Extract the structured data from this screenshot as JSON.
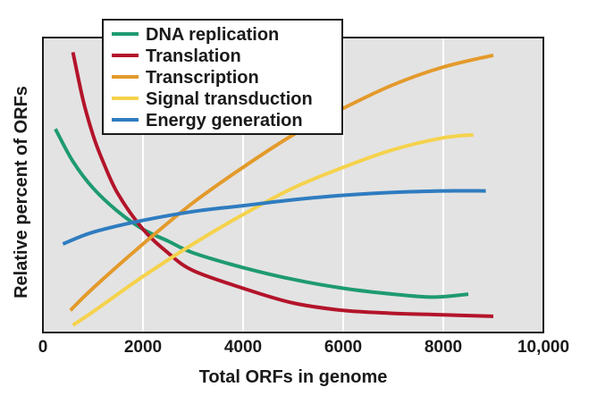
{
  "chart_data": {
    "type": "line",
    "xlabel": "Total ORFs in genome",
    "ylabel": "Relative percent of ORFs",
    "xlim": [
      0,
      10000
    ],
    "ylim": [
      0,
      100
    ],
    "x_ticks": [
      {
        "value": 0,
        "label": "0"
      },
      {
        "value": 2000,
        "label": "2000"
      },
      {
        "value": 4000,
        "label": "4000"
      },
      {
        "value": 6000,
        "label": "6000"
      },
      {
        "value": 8000,
        "label": "8000"
      },
      {
        "value": 10000,
        "label": "10,000"
      }
    ],
    "grid": "vertical",
    "legend_position": "top-left",
    "background_color": "#e3e3e3",
    "series": [
      {
        "name": "DNA replication",
        "color": "#1e9a72",
        "x": [
          250,
          600,
          1000,
          1500,
          2000,
          2500,
          3000,
          4000,
          5000,
          6000,
          7000,
          7800,
          8500
        ],
        "y": [
          69,
          58,
          49,
          41,
          35,
          31,
          27,
          22,
          18,
          15,
          13,
          12,
          13
        ]
      },
      {
        "name": "Translation",
        "color": "#b3142a",
        "x": [
          600,
          800,
          1000,
          1200,
          1500,
          2000,
          2500,
          3000,
          4000,
          5000,
          6000,
          7000,
          8000,
          9000
        ],
        "y": [
          95,
          79,
          67,
          58,
          47,
          35,
          27,
          21,
          15,
          10,
          7.5,
          6.5,
          6,
          5.5
        ]
      },
      {
        "name": "Transcription",
        "color": "#e39a2b",
        "x": [
          550,
          1000,
          2000,
          3000,
          4000,
          5000,
          6000,
          7000,
          8000,
          9000
        ],
        "y": [
          7.5,
          15,
          30,
          44,
          56,
          67,
          76,
          84,
          90,
          94
        ]
      },
      {
        "name": "Signal transduction",
        "color": "#f5d24b",
        "x": [
          600,
          1000,
          2000,
          3000,
          4000,
          5000,
          6000,
          7000,
          8000,
          8600
        ],
        "y": [
          2.5,
          7,
          19,
          30,
          40,
          49,
          56,
          62,
          66,
          67
        ]
      },
      {
        "name": "Energy generation",
        "color": "#2f7cc0",
        "x": [
          400,
          1000,
          2000,
          3000,
          4000,
          5000,
          6000,
          7000,
          8000,
          8850
        ],
        "y": [
          30,
          34,
          38,
          41,
          43,
          45,
          46.5,
          47.5,
          48,
          48
        ]
      }
    ]
  }
}
